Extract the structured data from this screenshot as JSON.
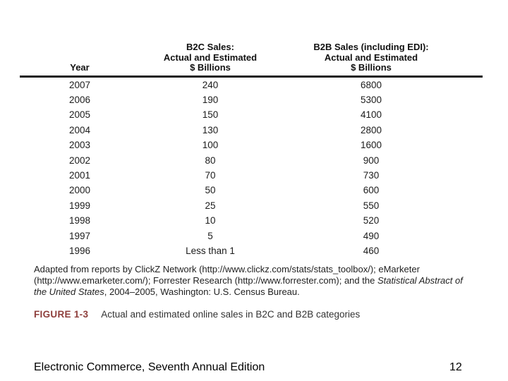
{
  "colors": {
    "background": "#ffffff",
    "table_text": "#1c1c1c",
    "header_rule": "#1a1a1a",
    "figure_label": "#8e3e3b",
    "caption_text": "#333333",
    "footer_text": "#000000"
  },
  "chart_data": {
    "type": "table",
    "columns": [
      "Year",
      "B2C Sales: Actual and Estimated $ Billions",
      "B2B Sales (including EDI): Actual and Estimated $ Billions"
    ],
    "rows": [
      [
        "2007",
        "240",
        "6800"
      ],
      [
        "2006",
        "190",
        "5300"
      ],
      [
        "2005",
        "150",
        "4100"
      ],
      [
        "2004",
        "130",
        "2800"
      ],
      [
        "2003",
        "100",
        "1600"
      ],
      [
        "2002",
        "80",
        "900"
      ],
      [
        "2001",
        "70",
        "730"
      ],
      [
        "2000",
        "50",
        "600"
      ],
      [
        "1999",
        "25",
        "550"
      ],
      [
        "1998",
        "10",
        "520"
      ],
      [
        "1997",
        "5",
        "490"
      ],
      [
        "1996",
        "Less than 1",
        "460"
      ]
    ]
  },
  "figure": {
    "table": {
      "header": {
        "year": "Year",
        "b2c_lines": [
          "B2C Sales:",
          "Actual and Estimated",
          "$ Billions"
        ],
        "b2b_lines": [
          "B2B Sales (including EDI):",
          "Actual and Estimated",
          "$ Billions"
        ]
      },
      "rows": [
        [
          "2007",
          "240",
          "6800"
        ],
        [
          "2006",
          "190",
          "5300"
        ],
        [
          "2005",
          "150",
          "4100"
        ],
        [
          "2004",
          "130",
          "2800"
        ],
        [
          "2003",
          "100",
          "1600"
        ],
        [
          "2002",
          "80",
          "900"
        ],
        [
          "2001",
          "70",
          "730"
        ],
        [
          "2000",
          "50",
          "600"
        ],
        [
          "1999",
          "25",
          "550"
        ],
        [
          "1998",
          "10",
          "520"
        ],
        [
          "1997",
          "5",
          "490"
        ],
        [
          "1996",
          "Less than 1",
          "460"
        ]
      ]
    },
    "source_note": {
      "part1": "Adapted from reports by ClickZ Network (http://www.clickz.com/stats/stats_toolbox/); eMarketer (http://www.emarketer.com/); Forrester Research (http://www.forrester.com); and the ",
      "italic": "Statistical Abstract of the United States",
      "part2": ", 2004–2005, Washington: U.S. Census Bureau."
    },
    "caption": {
      "label": "FIGURE 1-3",
      "text": "Actual and estimated online sales in B2C and B2B categories"
    }
  },
  "footer": {
    "book_title": "Electronic Commerce, Seventh Annual Edition",
    "page_number": "12"
  }
}
